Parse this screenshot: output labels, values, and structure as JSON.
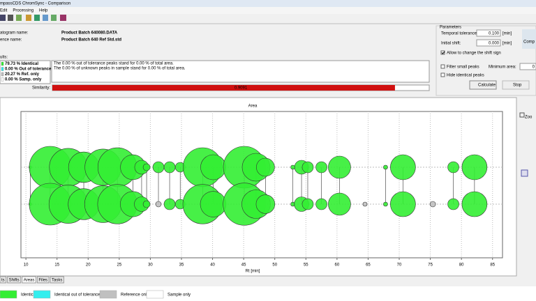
{
  "window": {
    "title": "mpassCDS ChromSync - Comparison"
  },
  "menu": [
    "Edit",
    "Processing",
    "Help"
  ],
  "names": [
    {
      "label": "atogram name:",
      "value": "Product Batch 640080.DATA"
    },
    {
      "label": "ence name:",
      "value": "Product Batch 640 Ref Std.std"
    }
  ],
  "parameters": {
    "title": "Parameters",
    "temporal_tolerance": {
      "label": "Temporal tolerance:",
      "value": "0.100",
      "unit": "[min]"
    },
    "initial_shift": {
      "label": "Initial shift:",
      "value": "0.000",
      "unit": "[min]"
    },
    "allow_shift_sign": "Allow to change the shift sign",
    "filter_small": "Filter small peaks",
    "minimum_area": {
      "label": "Minimum area:",
      "value": "0"
    },
    "hide_identical": "Hide identical peaks",
    "calculate": "Calculate",
    "stop": "Stop"
  },
  "results": {
    "label": "ults:",
    "stats": [
      "79.73 % Identical",
      "0.00 % Out of tolerance",
      "20.27 % Ref. only",
      "0.00 % Samp. only"
    ],
    "messages": [
      "The 0.00 % out of tolerance peaks stand for 0.00 % of total area.",
      "The 0.00 % of unknown peaks in sample stand for 0.00 % of total area."
    ],
    "similarity_label": "Similarity:",
    "similarity": 0.9091
  },
  "chart_data": {
    "type": "bubble",
    "title": "Area",
    "x_label": "Rt [min]",
    "xlim": [
      9.2,
      86.6
    ],
    "xticks": [
      10,
      15,
      20,
      25,
      30,
      35,
      40,
      45,
      50,
      55,
      60,
      65,
      70,
      75,
      80,
      85
    ],
    "grid": true,
    "legend": [
      {
        "name": "Identical",
        "color": "#33ee33"
      },
      {
        "name": "Identical out of tolerance",
        "color": "#33eeee"
      },
      {
        "name": "Reference only",
        "color": "#c0c0c0"
      },
      {
        "name": "Sample only",
        "color": "#ffffff"
      }
    ],
    "series": [
      {
        "x": [
          10.7,
          13.9,
          16.8,
          19.3,
          22.4,
          24.7,
          27.2,
          28.6,
          29.4,
          31.3,
          33.1,
          34.8,
          38.4,
          40.1,
          45.1,
          47.0,
          48.5,
          52.9,
          54.3,
          55.3,
          57.5,
          60.4,
          67.8,
          70.6,
          78.7,
          82.1
        ],
        "values": [
          4,
          900,
          730,
          480,
          680,
          780,
          320,
          100,
          25,
          64,
          64,
          49,
          784,
          324,
          900,
          400,
          169,
          9,
          100,
          64,
          64,
          256,
          9,
          324,
          64,
          324
        ],
        "status": [
          0,
          0,
          0,
          0,
          0,
          0,
          0,
          0,
          0,
          0,
          0,
          0,
          0,
          0,
          0,
          0,
          0,
          0,
          0,
          0,
          0,
          0,
          0,
          0,
          0,
          0
        ]
      },
      {
        "x": [
          10.7,
          13.9,
          16.8,
          19.3,
          22.4,
          24.7,
          27.2,
          28.6,
          29.4,
          31.3,
          33.1,
          34.8,
          38.4,
          40.1,
          45.1,
          47.0,
          48.5,
          52.9,
          54.3,
          55.3,
          57.5,
          60.4,
          64.5,
          67.8,
          70.6,
          75.4,
          78.7,
          82.1
        ],
        "values": [
          4,
          900,
          760,
          500,
          700,
          800,
          330,
          110,
          25,
          16,
          64,
          49,
          800,
          340,
          920,
          420,
          180,
          9,
          110,
          64,
          64,
          256,
          9,
          9,
          324,
          16,
          64,
          324
        ],
        "status": [
          0,
          0,
          0,
          0,
          0,
          0,
          0,
          0,
          0,
          2,
          0,
          0,
          0,
          0,
          0,
          0,
          0,
          0,
          0,
          0,
          0,
          0,
          2,
          0,
          0,
          2,
          0,
          0
        ]
      }
    ]
  },
  "tabs": [
    "ts",
    "Shifts",
    "Areas",
    "Files",
    "Tasks"
  ],
  "side": {
    "zoom": "Zoo"
  },
  "logo": "Comp"
}
